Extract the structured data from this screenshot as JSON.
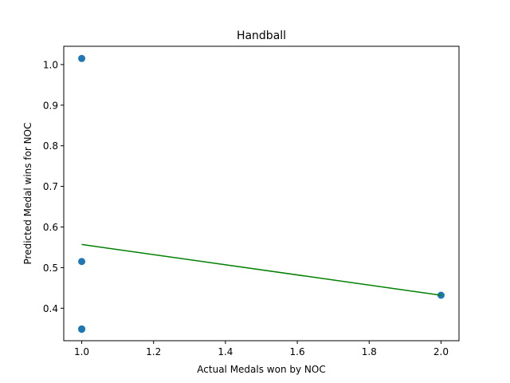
{
  "chart_data": {
    "type": "scatter",
    "title": "Handball",
    "xlabel": "Actual Medals won by NOC",
    "ylabel": "Predicted Medal wins for NOC",
    "xlim": [
      0.95,
      2.05
    ],
    "ylim": [
      0.32,
      1.045
    ],
    "xticks": [
      1.0,
      1.2,
      1.4,
      1.6,
      1.8,
      2.0
    ],
    "xtick_labels": [
      "1.0",
      "1.2",
      "1.4",
      "1.6",
      "1.8",
      "2.0"
    ],
    "yticks": [
      0.4,
      0.5,
      0.6,
      0.7,
      0.8,
      0.9,
      1.0
    ],
    "ytick_labels": [
      "0.4",
      "0.5",
      "0.6",
      "0.7",
      "0.8",
      "0.9",
      "1.0"
    ],
    "grid": false,
    "series": [
      {
        "kind": "scatter",
        "color": "#1f77b4",
        "points": [
          {
            "x": 1.0,
            "y": 1.015
          },
          {
            "x": 1.0,
            "y": 0.515
          },
          {
            "x": 1.0,
            "y": 0.349
          },
          {
            "x": 1.0,
            "y": 0.348
          },
          {
            "x": 2.0,
            "y": 0.432
          }
        ]
      },
      {
        "kind": "line",
        "color": "#008000",
        "points": [
          {
            "x": 1.0,
            "y": 0.557
          },
          {
            "x": 2.0,
            "y": 0.432
          }
        ]
      }
    ]
  }
}
